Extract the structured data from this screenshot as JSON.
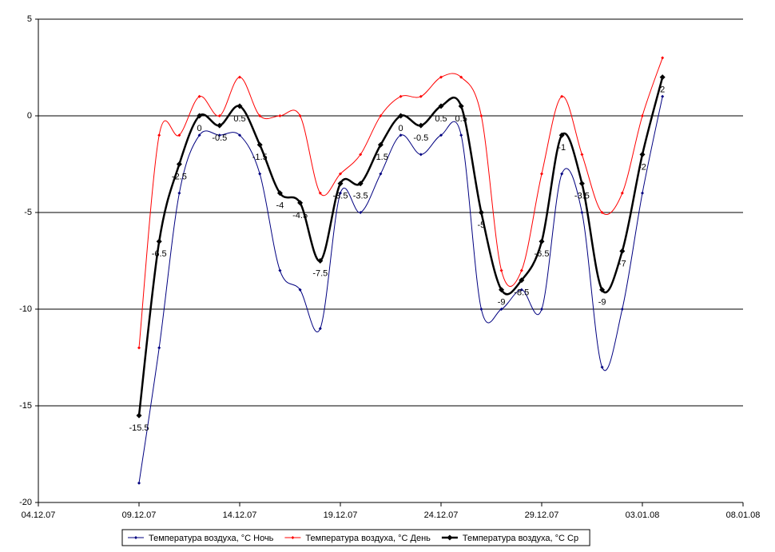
{
  "chart_data": {
    "type": "line",
    "x": [
      "2007-12-09",
      "2007-12-10",
      "2007-12-11",
      "2007-12-12",
      "2007-12-13",
      "2007-12-14",
      "2007-12-15",
      "2007-12-16",
      "2007-12-17",
      "2007-12-18",
      "2007-12-19",
      "2007-12-20",
      "2007-12-21",
      "2007-12-22",
      "2007-12-23",
      "2007-12-24",
      "2007-12-25",
      "2007-12-26",
      "2007-12-27",
      "2007-12-28",
      "2007-12-29",
      "2007-12-30",
      "2007-12-31",
      "2008-01-01",
      "2008-01-02",
      "2008-01-03",
      "2008-01-04"
    ],
    "series": [
      {
        "name": "Температура воздуха, °C  Ночь",
        "color": "#000080",
        "values": [
          -19,
          -12,
          -4,
          -1,
          -1,
          -1,
          -3,
          -8,
          -9,
          -11,
          -4,
          -5,
          -3,
          -1,
          -2,
          -1,
          -1,
          -10,
          -10,
          -9,
          -10,
          -3,
          -5,
          -13,
          -10,
          -4,
          1
        ]
      },
      {
        "name": "Температура воздуха, °C  День",
        "color": "#ff0000",
        "values": [
          -12,
          -1,
          -1,
          1,
          0,
          2,
          0,
          0,
          0,
          -4,
          -3,
          -2,
          0,
          1,
          1,
          2,
          2,
          0,
          -8,
          -8,
          -3,
          1,
          -2,
          -5,
          -4,
          0,
          3
        ]
      },
      {
        "name": "Температура воздуха, °C  Ср",
        "color": "#000000",
        "data_labels": true,
        "values": [
          -15.5,
          -6.5,
          -2.5,
          0,
          -0.5,
          0.5,
          -1.5,
          -4,
          -4.5,
          -7.5,
          -3.5,
          -3.5,
          -1.5,
          0,
          -0.5,
          0.5,
          0.5,
          -5,
          -9,
          -8.5,
          -6.5,
          -1,
          -3.5,
          -9,
          -7,
          -2,
          2
        ]
      }
    ],
    "xlim": [
      "2007-12-04",
      "2008-01-08"
    ],
    "xticks": [
      {
        "value": "2007-12-04",
        "label": "04.12.07"
      },
      {
        "value": "2007-12-09",
        "label": "09.12.07"
      },
      {
        "value": "2007-12-14",
        "label": "14.12.07"
      },
      {
        "value": "2007-12-19",
        "label": "19.12.07"
      },
      {
        "value": "2007-12-24",
        "label": "24.12.07"
      },
      {
        "value": "2007-12-29",
        "label": "29.12.07"
      },
      {
        "value": "2008-01-03",
        "label": "03.01.08"
      },
      {
        "value": "2008-01-08",
        "label": "08.01.08"
      }
    ],
    "ylim": [
      -20,
      5
    ],
    "yticks": [
      -20,
      -15,
      -10,
      -5,
      0,
      5
    ],
    "grid": true,
    "legend": "bottom"
  }
}
